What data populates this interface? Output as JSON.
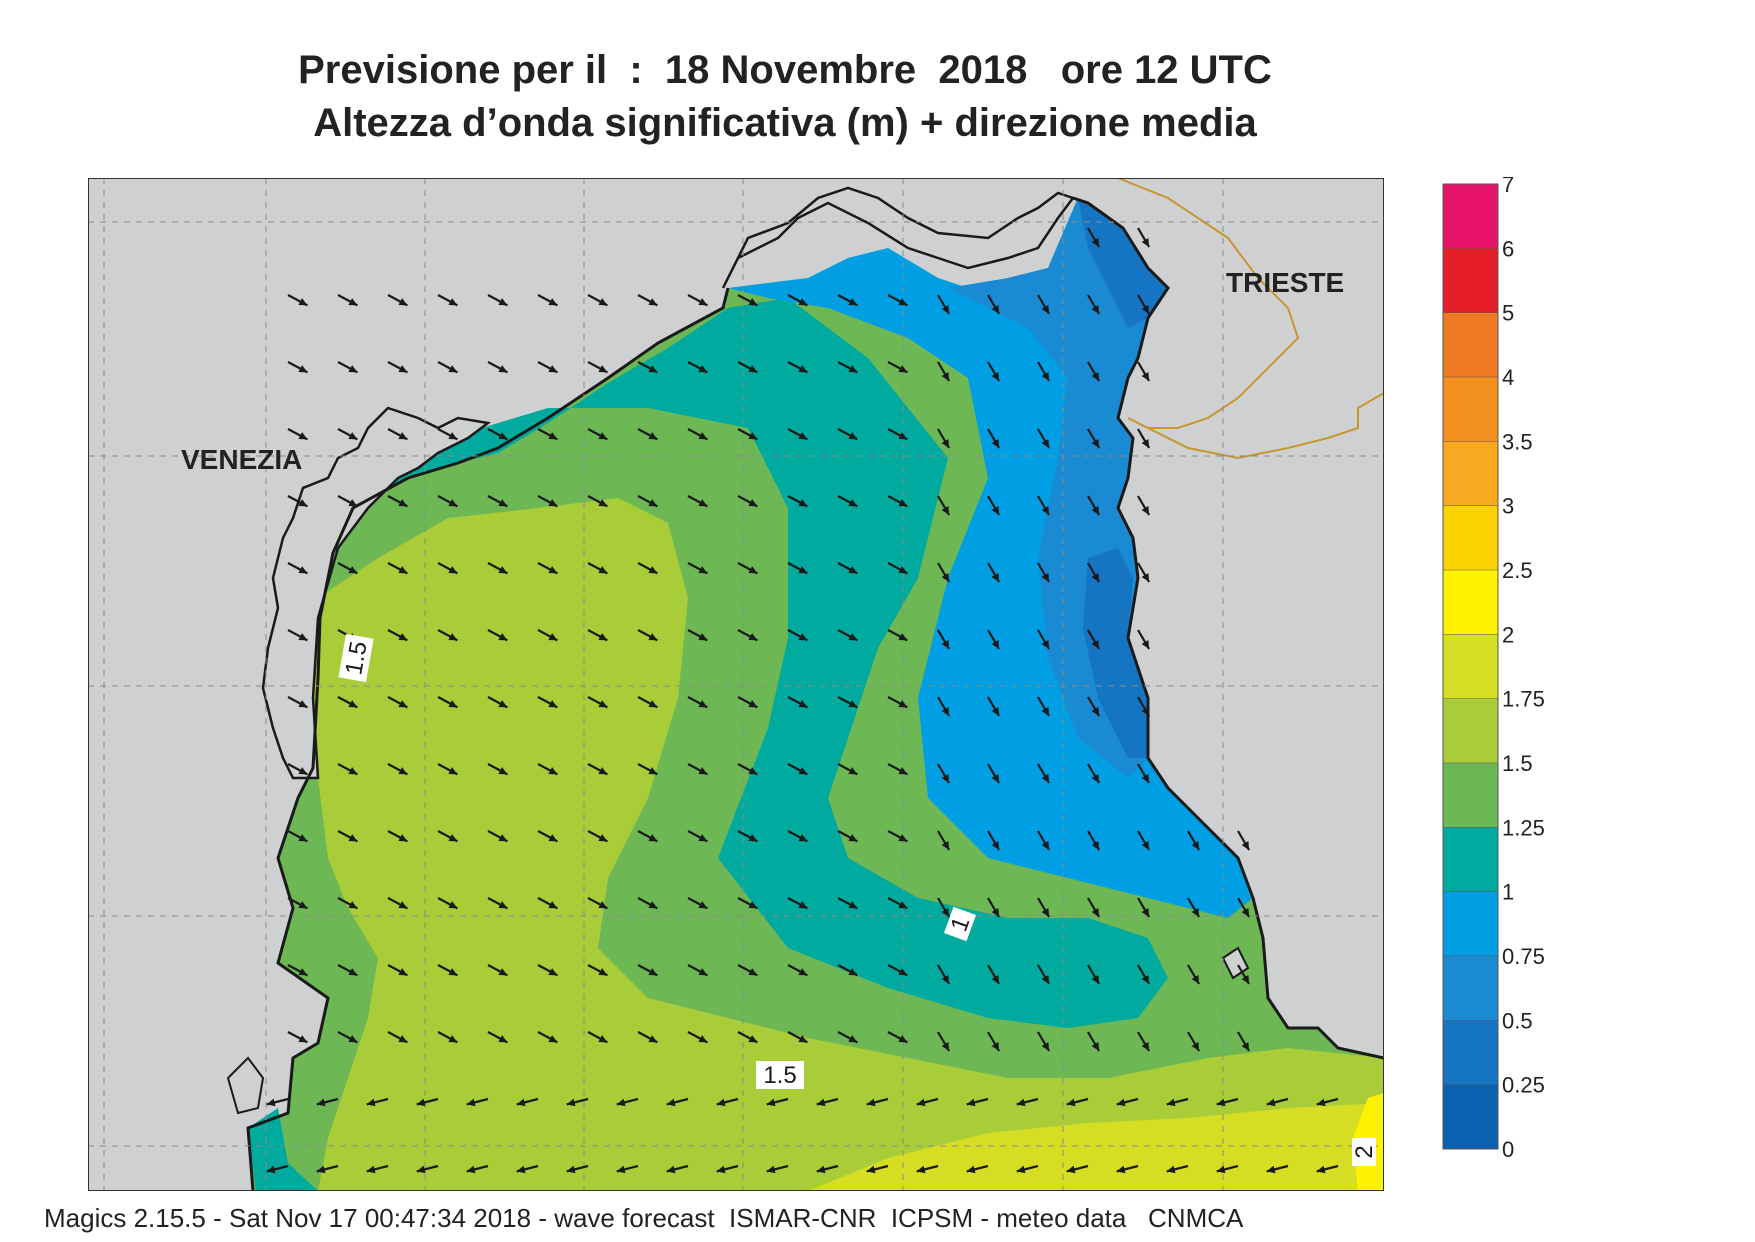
{
  "title": {
    "line1": "Previsione per il  :  18 Novembre  2018   ore 12 UTC",
    "line2": "Altezza d’onda significativa (m) + direzione media"
  },
  "places": {
    "venezia": "VENEZIA",
    "trieste": "TRIESTE"
  },
  "contour_labels": {
    "venezia_coast": "1.5",
    "east_middle": "1",
    "south_middle": "1.5",
    "south_east": "2"
  },
  "legend": {
    "labels": [
      "7",
      "6",
      "5",
      "4",
      "3.5",
      "3",
      "2.5",
      "2",
      "1.75",
      "1.5",
      "1.25",
      "1",
      "0.75",
      "0.5",
      "0.25",
      "0"
    ],
    "bins": [
      {
        "from": 6,
        "to": 7,
        "color": "#e8146c"
      },
      {
        "from": 5,
        "to": 6,
        "color": "#e51e2a"
      },
      {
        "from": 4,
        "to": 5,
        "color": "#ef7b24"
      },
      {
        "from": 3.5,
        "to": 4,
        "color": "#f4911e"
      },
      {
        "from": 3,
        "to": 3.5,
        "color": "#f9a91f"
      },
      {
        "from": 2.5,
        "to": 3,
        "color": "#fcd200"
      },
      {
        "from": 2,
        "to": 2.5,
        "color": "#fef200"
      },
      {
        "from": 1.75,
        "to": 2,
        "color": "#d5de22"
      },
      {
        "from": 1.5,
        "to": 1.75,
        "color": "#a9cc39"
      },
      {
        "from": 1.25,
        "to": 1.5,
        "color": "#6db855"
      },
      {
        "from": 1,
        "to": 1.25,
        "color": "#00aa9f"
      },
      {
        "from": 0.75,
        "to": 1,
        "color": "#009fe3"
      },
      {
        "from": 0.5,
        "to": 0.75,
        "color": "#1a8ad3"
      },
      {
        "from": 0.25,
        "to": 0.5,
        "color": "#1675c3"
      },
      {
        "from": 0,
        "to": 0.25,
        "color": "#0c60b0"
      }
    ]
  },
  "colors": {
    "land": "#cfd0d2",
    "coast": "#1a1a1a",
    "border": "#c9952f",
    "grid": "#8a8a8a",
    "arrow": "#1a1a1a"
  },
  "footer": "Magics 2.15.5 - Sat Nov 17 00:47:34 2018 - wave forecast  ISMAR-CNR  ICPSM - meteo data   CNMCA"
}
